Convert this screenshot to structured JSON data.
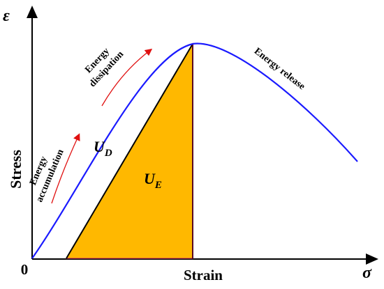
{
  "axes": {
    "y_symbol": "ε",
    "x_symbol": "σ",
    "y_label": "Stress",
    "x_label": "Strain",
    "origin_label": "0"
  },
  "annotations": {
    "energy_accumulation_line1": "Energy",
    "energy_accumulation_line2": "accumulation",
    "energy_dissipation_line1": "Energy",
    "energy_dissipation_line2": "dissipation",
    "energy_release": "Energy release"
  },
  "regions": {
    "ud_main": "U",
    "ud_sub": "D",
    "ue_main": "U",
    "ue_sub": "E"
  },
  "colors": {
    "curve": "#1a1aff",
    "fill_ue": "#ffb800",
    "arrow": "#e01010",
    "axis": "#000000"
  }
}
